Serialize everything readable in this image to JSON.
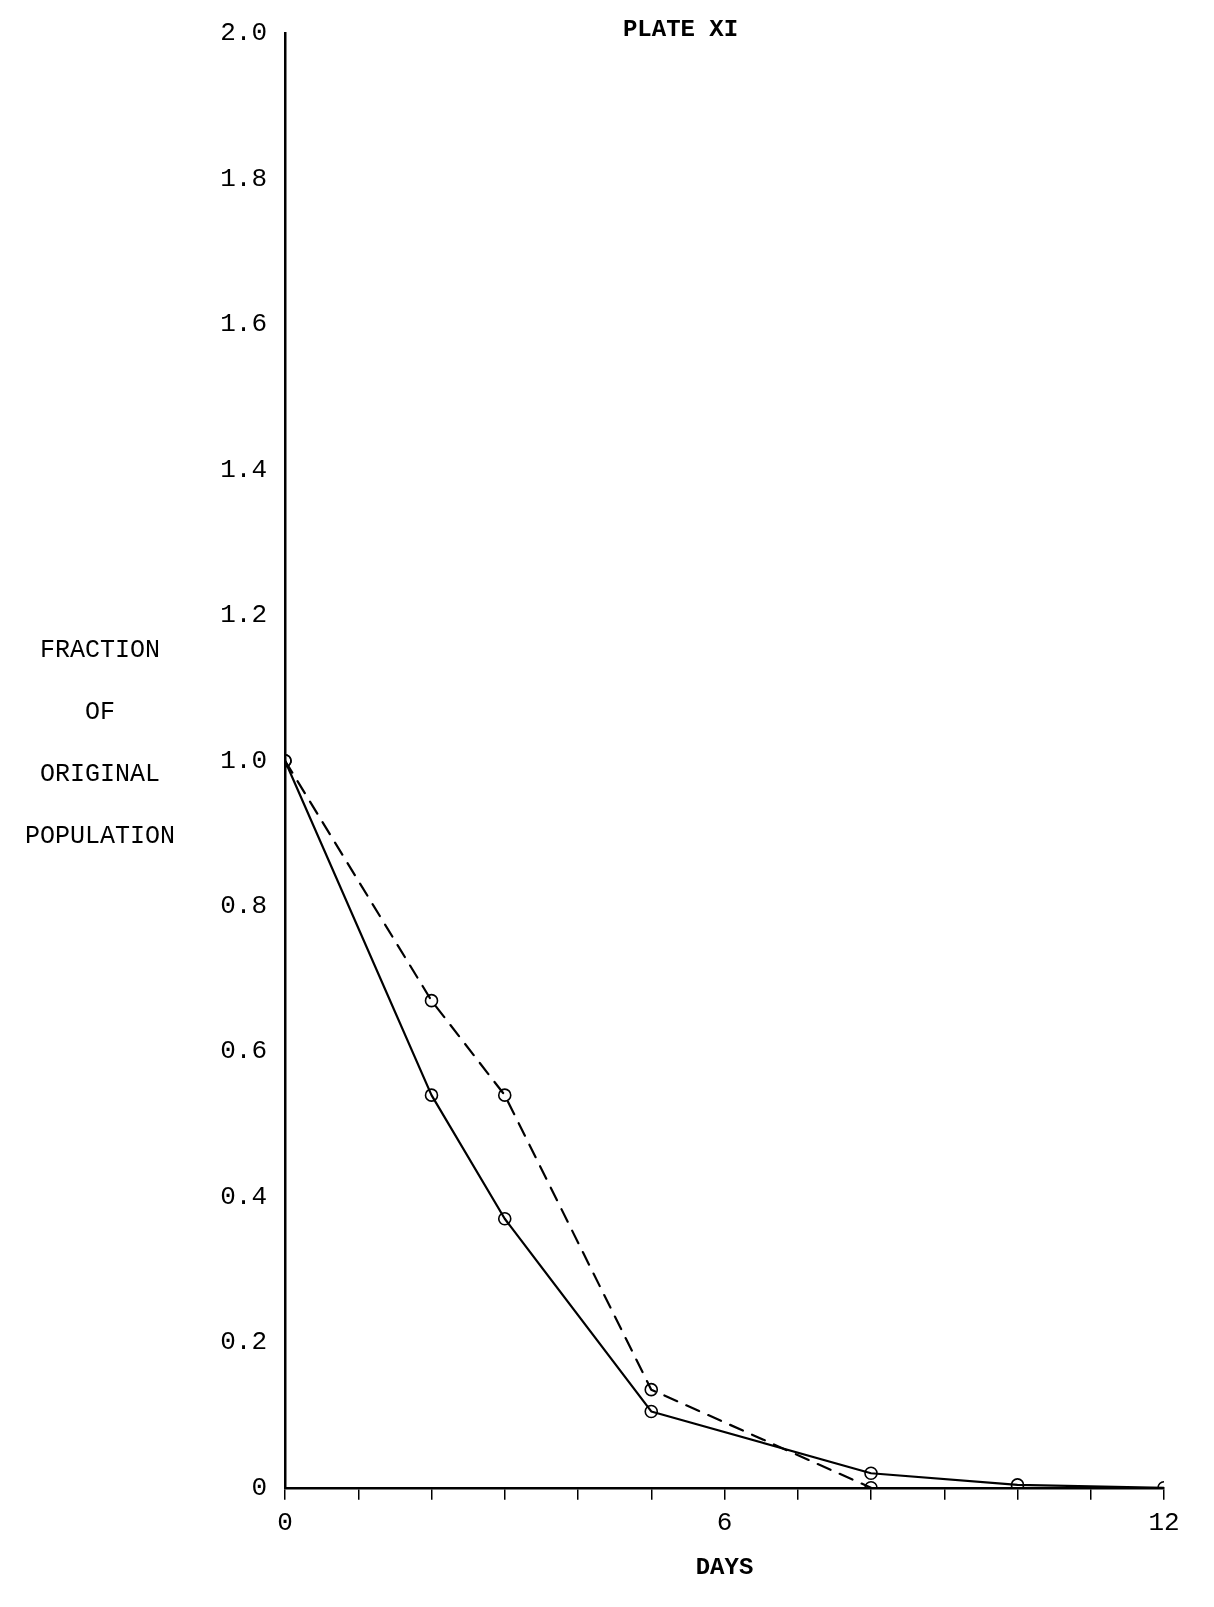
{
  "chart_data": {
    "type": "line",
    "title": "PLATE XI",
    "xlabel": "DAYS",
    "ylabel": "FRACTION OF ORIGINAL POPULATION",
    "x": [
      0,
      2,
      3,
      5,
      8,
      10,
      12
    ],
    "series": [
      {
        "color": "#000000",
        "values": [
          1.0,
          0.54,
          0.37,
          0.105,
          0.02,
          0.004,
          0
        ],
        "line_style": "solid"
      },
      {
        "color": "#000000",
        "x": [
          0,
          2,
          3,
          5,
          8
        ],
        "values": [
          1.0,
          0.67,
          0.54,
          0.135,
          0
        ],
        "line_style": "dashed"
      }
    ],
    "xlim": [
      0,
      12
    ],
    "xticks": [
      0,
      {
        "value": 1,
        "label": null
      },
      {
        "value": 2,
        "label": null
      },
      {
        "value": 3,
        "label": null
      },
      {
        "value": 4,
        "label": null
      },
      {
        "value": 5,
        "label": null
      },
      6,
      {
        "value": 7,
        "label": null
      },
      {
        "value": 8,
        "label": null
      },
      {
        "value": 9,
        "label": null
      },
      {
        "value": 10,
        "label": null
      },
      {
        "value": 11,
        "label": null
      },
      12
    ],
    "ylim": [
      0,
      2
    ],
    "yticks": [
      0,
      {
        "value": 0.2,
        "label": "0.2"
      },
      {
        "value": 0.4,
        "label": "0.4"
      },
      {
        "value": 0.6,
        "label": "0.6"
      },
      {
        "value": 0.8,
        "label": "0.8"
      },
      {
        "value": 1,
        "label": "1.0"
      },
      {
        "value": 1.2,
        "label": "1.2"
      },
      {
        "value": 1.4,
        "label": "1.4"
      },
      {
        "value": 1.6,
        "label": "1.6"
      },
      {
        "value": 1.8,
        "label": "1.8"
      },
      {
        "value": 2,
        "label": "2.0"
      }
    ],
    "grid": false,
    "legend": false,
    "marker": "circle"
  }
}
